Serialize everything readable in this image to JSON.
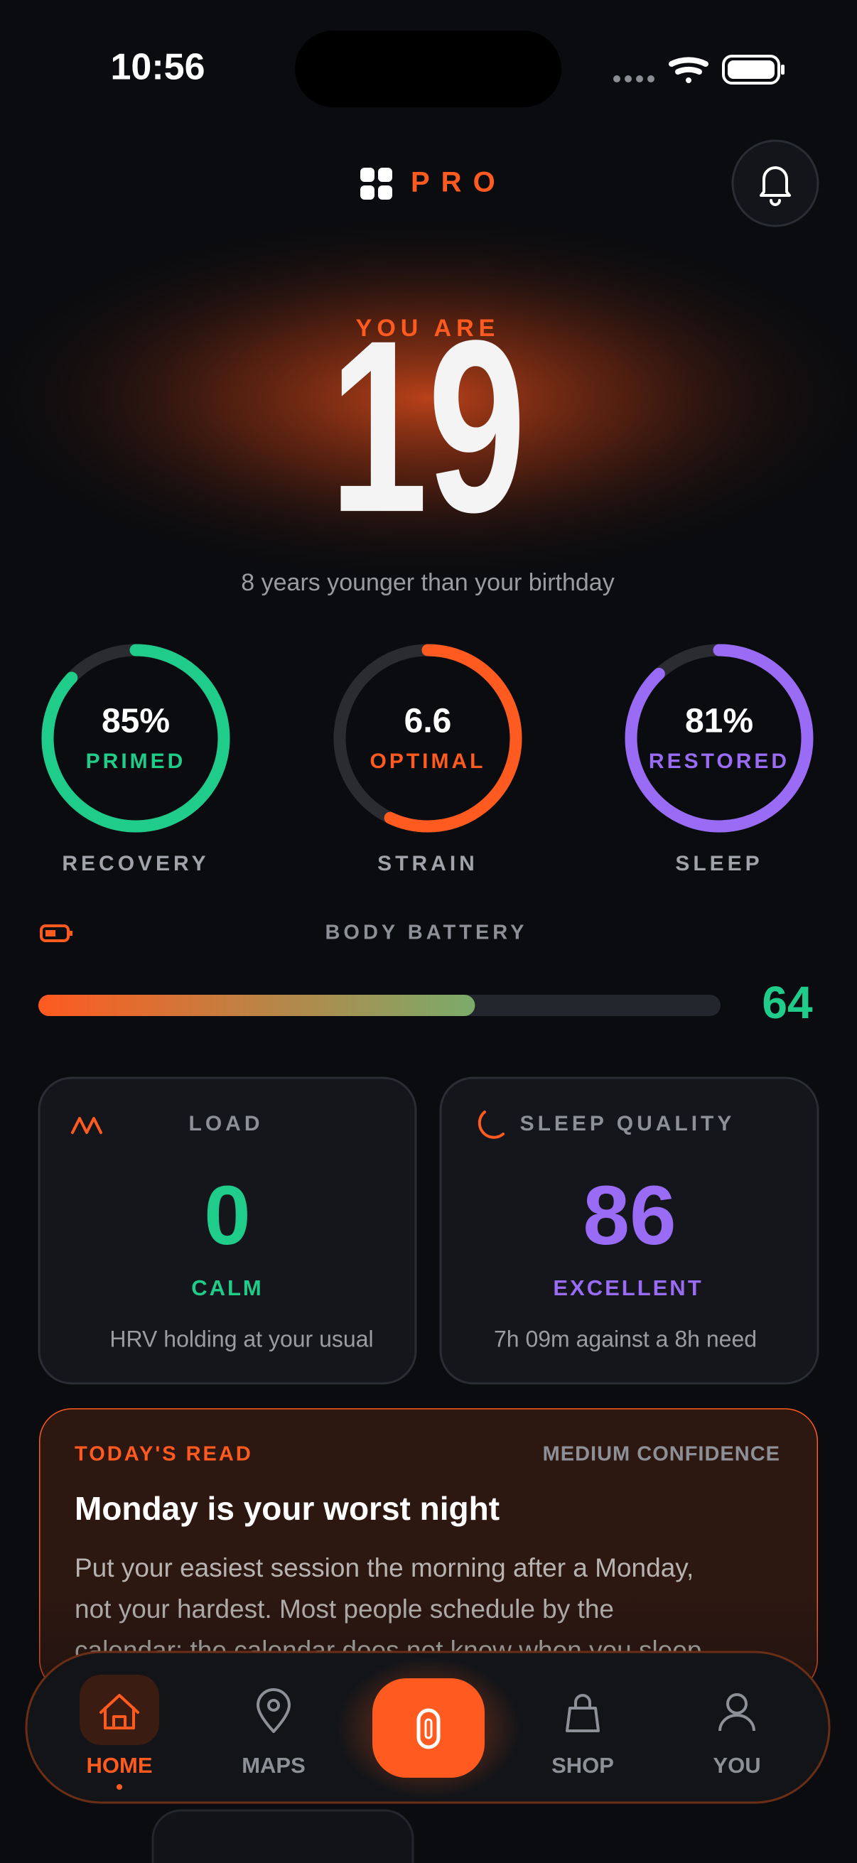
{
  "status_bar": {
    "time": "10:56"
  },
  "header": {
    "brand": "PRO"
  },
  "hero": {
    "eyebrow": "YOU ARE",
    "age": "19",
    "subtitle": "8 years younger than your birthday"
  },
  "metrics": [
    {
      "value": "85%",
      "status": "PRIMED",
      "label": "RECOVERY"
    },
    {
      "value": "6.6",
      "status": "OPTIMAL",
      "label": "STRAIN"
    },
    {
      "value": "81%",
      "status": "RESTORED",
      "label": "SLEEP"
    }
  ],
  "body_battery": {
    "label": "BODY BATTERY",
    "value": 64
  },
  "cards": [
    {
      "title": "LOAD",
      "value": "0",
      "status": "CALM",
      "description": "HRV holding at your usual"
    },
    {
      "title": "SLEEP QUALITY",
      "value": "86",
      "status": "EXCELLENT",
      "description": "7h 09m against a 8h need"
    }
  ],
  "todays_read": {
    "eyebrow": "TODAY'S READ",
    "confidence": "MEDIUM CONFIDENCE",
    "title": "Monday is your worst night",
    "body_lines": [
      "Put your easiest session the morning after a Monday,",
      "not your hardest. Most people schedule by the",
      "calendar: the calendar does not know when you sleep"
    ]
  },
  "nav": {
    "items": [
      "HOME",
      "MAPS",
      "SHOP",
      "YOU"
    ]
  }
}
